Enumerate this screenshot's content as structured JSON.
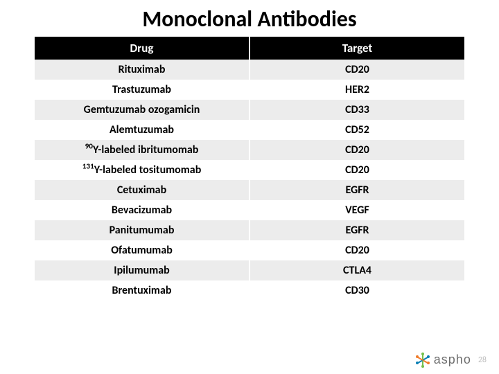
{
  "title": "Monoclonal Antibodies",
  "title_fontsize": 32,
  "table": {
    "header_bg": "#000000",
    "header_color": "#ffffff",
    "header_fontsize": 17,
    "cell_fontsize": 16,
    "row_colors": [
      "#ececec",
      "#ffffff"
    ],
    "columns": [
      "Drug",
      "Target"
    ],
    "column_widths": [
      "50%",
      "50%"
    ],
    "rows": [
      {
        "drug_html": "Rituximab",
        "target": "CD20"
      },
      {
        "drug_html": "Trastuzumab",
        "target": "HER2"
      },
      {
        "drug_html": "Gemtuzumab ozogamicin",
        "target": "CD33"
      },
      {
        "drug_html": "Alemtuzumab",
        "target": "CD52"
      },
      {
        "drug_html": "<sup>90</sup>Y-labeled ibritumomab",
        "target": "CD20"
      },
      {
        "drug_html": "<sup>131</sup>Y-labeled tositumomab",
        "target": "CD20"
      },
      {
        "drug_html": "Cetuximab",
        "target": "EGFR"
      },
      {
        "drug_html": "Bevacizumab",
        "target": "VEGF"
      },
      {
        "drug_html": "Panitumumab",
        "target": "EGFR"
      },
      {
        "drug_html": "Ofatumumab",
        "target": "CD20"
      },
      {
        "drug_html": "Ipilumumab",
        "target": "CTLA4"
      },
      {
        "drug_html": "Brentuximab",
        "target": "CD30"
      }
    ]
  },
  "footer": {
    "page_number": "28",
    "logo_text": "aspho",
    "logo_colors": {
      "bars": [
        "#73c04b",
        "#0a7fb5",
        "#f07c2a"
      ],
      "dots": [
        "#73c04b",
        "#0a7fb5",
        "#f07c2a"
      ]
    }
  }
}
